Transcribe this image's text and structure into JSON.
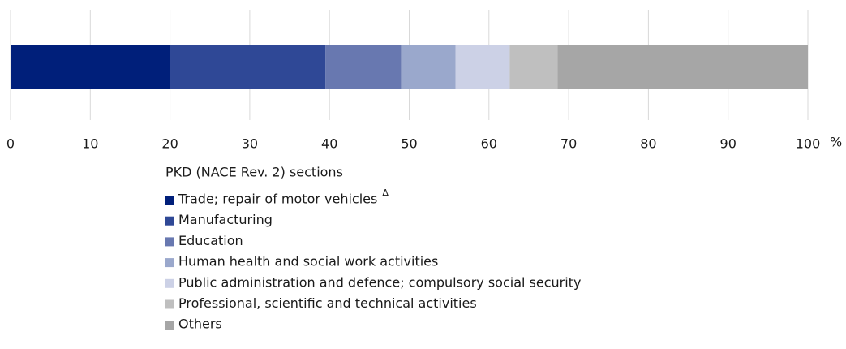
{
  "chart_data": {
    "type": "bar",
    "orientation": "horizontal",
    "stacked": true,
    "xlim": [
      0,
      100
    ],
    "xticks": [
      0,
      10,
      20,
      30,
      40,
      50,
      60,
      70,
      80,
      90,
      100
    ],
    "x_unit": "%",
    "grid": true,
    "legend_title": "PKD (NACE Rev. 2) sections",
    "series": [
      {
        "name": "Trade; repair of motor vehicles",
        "note": "Δ",
        "color": "#001f7a",
        "values": [
          20
        ]
      },
      {
        "name": "Manufacturing",
        "color": "#2f4896",
        "values": [
          19.5
        ]
      },
      {
        "name": "Education",
        "color": "#6878b0",
        "values": [
          9.5
        ]
      },
      {
        "name": "Human health and social work activities",
        "color": "#9aa8cc",
        "values": [
          6.8
        ]
      },
      {
        "name": "Public administration and defence; compulsory social security",
        "color": "#ccd1e6",
        "values": [
          6.8
        ]
      },
      {
        "name": "Professional, scientific and technical activities",
        "color": "#bfbfbf",
        "values": [
          6.0
        ]
      },
      {
        "name": "Others",
        "color": "#a6a6a6",
        "values": [
          31.4
        ]
      }
    ]
  }
}
